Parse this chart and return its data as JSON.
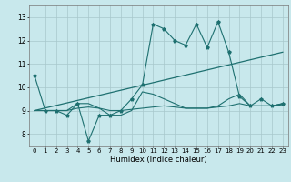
{
  "title": "",
  "xlabel": "Humidex (Indice chaleur)",
  "xlim": [
    -0.5,
    23.5
  ],
  "ylim": [
    7.5,
    13.5
  ],
  "yticks": [
    8,
    9,
    10,
    11,
    12,
    13
  ],
  "xticks": [
    0,
    1,
    2,
    3,
    4,
    5,
    6,
    7,
    8,
    9,
    10,
    11,
    12,
    13,
    14,
    15,
    16,
    17,
    18,
    19,
    20,
    21,
    22,
    23
  ],
  "bg_color": "#c8e8ec",
  "grid_color": "#a8c8cc",
  "line_color": "#1e7070",
  "series": [
    {
      "x": [
        0,
        1,
        2,
        3,
        4,
        5,
        6,
        7,
        8,
        9,
        10,
        11,
        12,
        13,
        14,
        15,
        16,
        17,
        18,
        19,
        20,
        21,
        22,
        23
      ],
      "y": [
        10.5,
        9.0,
        9.0,
        8.8,
        9.3,
        7.7,
        8.8,
        8.8,
        9.0,
        9.5,
        10.1,
        12.7,
        12.5,
        12.0,
        11.8,
        12.7,
        11.7,
        12.8,
        11.5,
        9.6,
        9.2,
        9.5,
        9.2,
        9.3
      ],
      "marker": "*",
      "lw": 0.8
    },
    {
      "x": [
        0,
        23
      ],
      "y": [
        9.0,
        11.5
      ],
      "marker": null,
      "lw": 0.9
    },
    {
      "x": [
        0,
        1,
        2,
        3,
        4,
        5,
        6,
        7,
        8,
        9,
        10,
        11,
        12,
        13,
        14,
        15,
        16,
        17,
        18,
        19,
        20,
        21,
        22,
        23
      ],
      "y": [
        9.0,
        9.0,
        9.0,
        9.0,
        9.3,
        9.3,
        9.1,
        8.8,
        8.8,
        9.0,
        9.8,
        9.7,
        9.5,
        9.3,
        9.1,
        9.1,
        9.1,
        9.2,
        9.5,
        9.7,
        9.2,
        9.2,
        9.2,
        9.3
      ],
      "marker": null,
      "lw": 0.8
    },
    {
      "x": [
        0,
        1,
        2,
        3,
        4,
        5,
        6,
        7,
        8,
        9,
        10,
        11,
        12,
        13,
        14,
        15,
        16,
        17,
        18,
        19,
        20,
        21,
        22,
        23
      ],
      "y": [
        9.0,
        9.0,
        9.0,
        9.0,
        9.1,
        9.15,
        9.1,
        9.0,
        9.0,
        9.05,
        9.1,
        9.15,
        9.2,
        9.15,
        9.1,
        9.1,
        9.1,
        9.15,
        9.2,
        9.3,
        9.2,
        9.2,
        9.2,
        9.25
      ],
      "marker": null,
      "lw": 0.8
    }
  ],
  "tick_fontsize": 5.0,
  "xlabel_fontsize": 6.0
}
